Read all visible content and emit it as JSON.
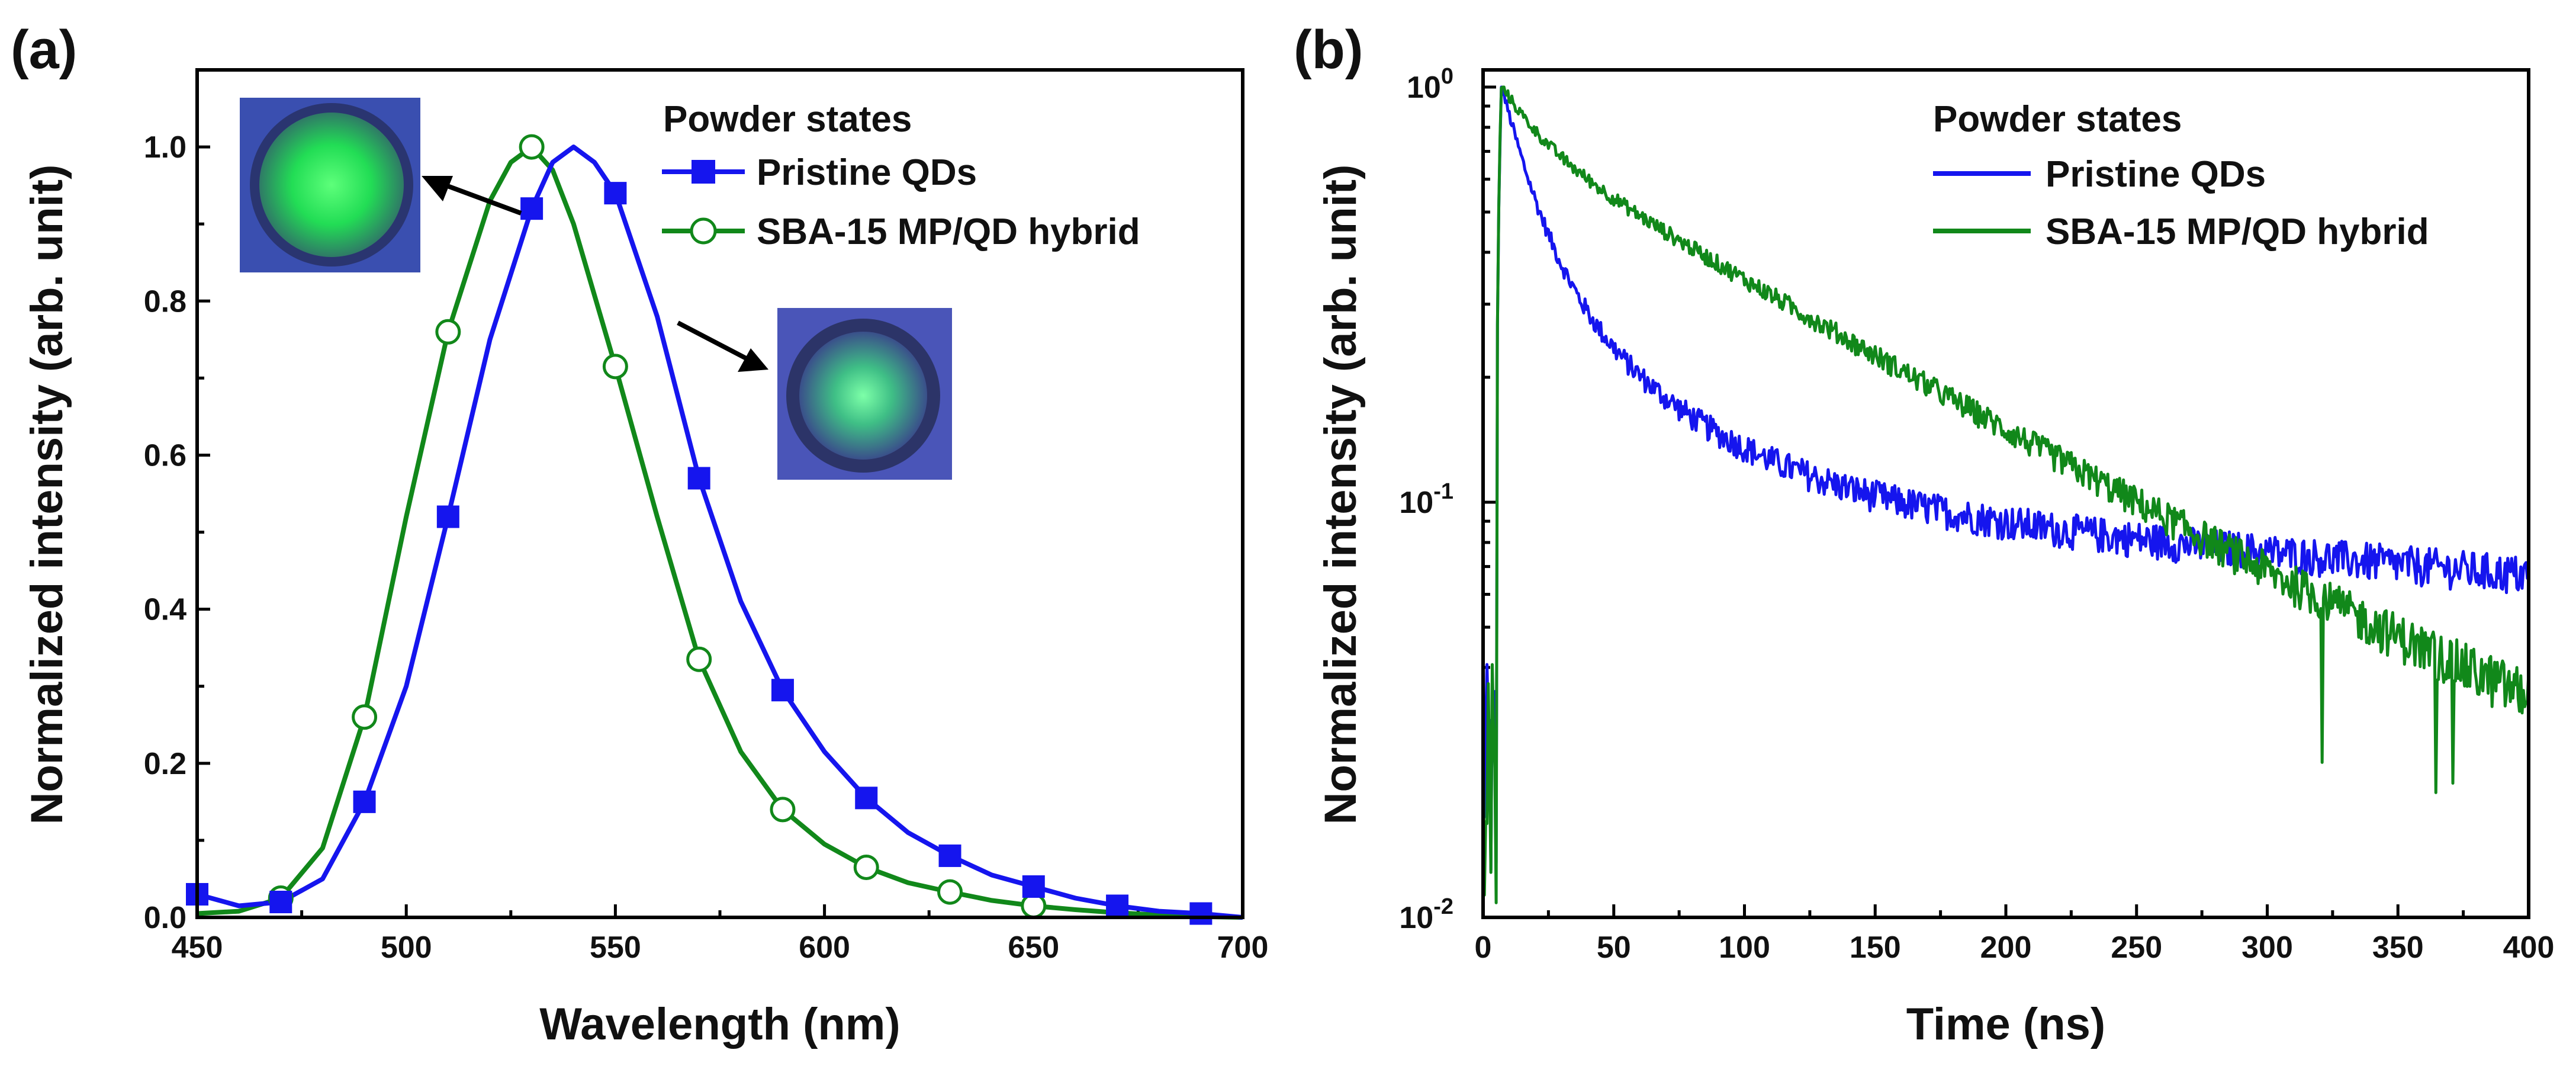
{
  "colors": {
    "blue": "#1515ee",
    "green": "#11881a",
    "axis": "#000000"
  },
  "chart_data": [
    {
      "type": "line",
      "panel_label": "(a)",
      "title": "",
      "xlabel": "Wavelength (nm)",
      "ylabel": "Normalized intensity (arb. unit)",
      "xlim": [
        450,
        700
      ],
      "ylim": [
        0,
        1.1
      ],
      "xticks": [
        "450",
        "500",
        "550",
        "600",
        "650",
        "700"
      ],
      "yticks": [
        "0.0",
        "0.2",
        "0.4",
        "0.6",
        "0.8",
        "1.0"
      ],
      "legend_title": "Powder states",
      "legend_position": "top-right",
      "series": [
        {
          "name": "Pristine QDs",
          "marker": "filled-square",
          "color": "#1515ee",
          "x": [
            450,
            460,
            470,
            480,
            490,
            500,
            510,
            520,
            530,
            535,
            540,
            545,
            550,
            560,
            570,
            580,
            590,
            600,
            610,
            620,
            630,
            640,
            650,
            660,
            670,
            680,
            690,
            700
          ],
          "y": [
            0.03,
            0.015,
            0.02,
            0.05,
            0.15,
            0.3,
            0.52,
            0.75,
            0.92,
            0.98,
            1.0,
            0.98,
            0.94,
            0.78,
            0.57,
            0.41,
            0.295,
            0.215,
            0.155,
            0.11,
            0.08,
            0.055,
            0.04,
            0.025,
            0.015,
            0.008,
            0.005,
            0.0
          ],
          "marker_x": [
            450,
            470,
            490,
            510,
            530,
            550,
            570,
            590,
            610,
            630,
            650,
            670,
            690
          ],
          "marker_y": [
            0.03,
            0.02,
            0.15,
            0.52,
            0.92,
            0.94,
            0.57,
            0.295,
            0.155,
            0.08,
            0.04,
            0.015,
            0.005
          ]
        },
        {
          "name": "SBA-15 MP/QD hybrid",
          "marker": "open-circle",
          "color": "#11881a",
          "x": [
            450,
            460,
            470,
            480,
            490,
            500,
            510,
            520,
            525,
            530,
            535,
            540,
            550,
            560,
            570,
            580,
            590,
            600,
            610,
            620,
            630,
            640,
            650,
            660,
            670,
            680,
            690,
            700
          ],
          "y": [
            0.005,
            0.008,
            0.025,
            0.09,
            0.26,
            0.52,
            0.76,
            0.93,
            0.98,
            1.0,
            0.97,
            0.9,
            0.715,
            0.52,
            0.335,
            0.215,
            0.14,
            0.095,
            0.065,
            0.045,
            0.033,
            0.022,
            0.015,
            0.01,
            0.006,
            0.003,
            0.001,
            0.0
          ],
          "marker_x": [
            470,
            490,
            510,
            530,
            550,
            570,
            590,
            610,
            630,
            650
          ],
          "marker_y": [
            0.025,
            0.26,
            0.76,
            1.0,
            0.715,
            0.335,
            0.14,
            0.065,
            0.033,
            0.015
          ]
        }
      ],
      "annotations": [
        "photo inset of green-emitting hybrid powder (points to green curve)",
        "photo inset of pristine QD powder (points to blue curve)"
      ]
    },
    {
      "type": "line",
      "panel_label": "(b)",
      "title": "",
      "xlabel": "Time (ns)",
      "ylabel": "Normalized intensity (arb. unit)",
      "yscale": "log",
      "xlim": [
        0,
        400
      ],
      "ylim": [
        0.01,
        1.1
      ],
      "xticks": [
        "0",
        "50",
        "100",
        "150",
        "200",
        "250",
        "300",
        "350",
        "400"
      ],
      "yticks": [
        {
          "base": "10",
          "exp": "0"
        },
        {
          "base": "10",
          "exp": "-1"
        },
        {
          "base": "10",
          "exp": "-2"
        }
      ],
      "legend_title": "Powder states",
      "legend_position": "top-right",
      "series": [
        {
          "name": "Pristine QDs",
          "color": "#1515ee",
          "peak_time_ns": 7,
          "decay_components": [
            [
              0.6,
              12
            ],
            [
              0.3,
              45
            ],
            [
              0.1,
              700
            ]
          ],
          "noise_floor": 0.012
        },
        {
          "name": "SBA-15 MP/QD hybrid",
          "color": "#11881a",
          "peak_time_ns": 7,
          "decay_components": [
            [
              0.25,
              15
            ],
            [
              0.75,
              115
            ]
          ],
          "noise_floor": 0.012
        }
      ]
    }
  ]
}
